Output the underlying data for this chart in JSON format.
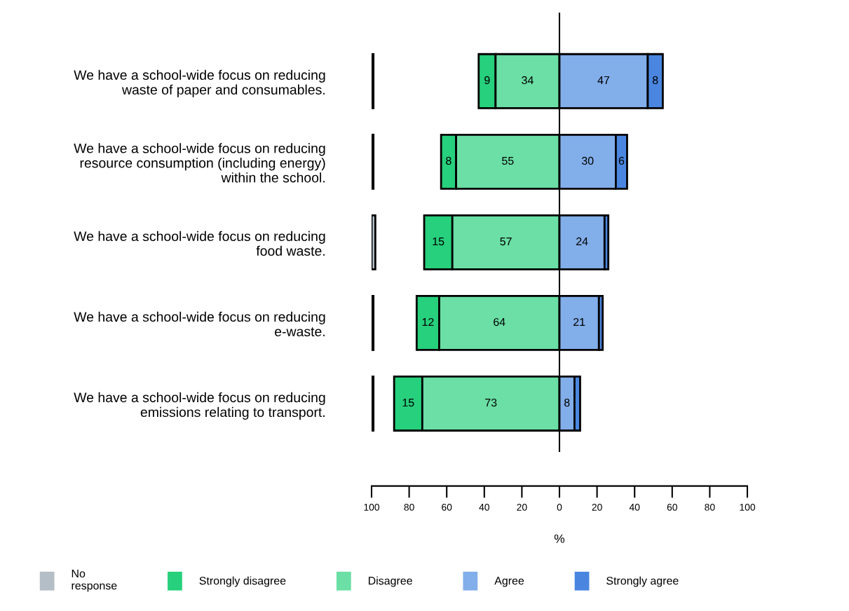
{
  "chart_data": {
    "type": "bar",
    "orientation": "horizontal",
    "xlabel": "%",
    "categories": [
      "We have a school-wide focus on reducing\nwaste of paper and consumables.",
      "We have a school-wide focus on reducing\nresource consumption (including energy)\nwithin the school.",
      "We have a school-wide focus on reducing\nfood waste.",
      "We have a school-wide focus on reducing\ne-waste.",
      "We have a school-wide focus on reducing\nemissions relating to transport."
    ],
    "series": [
      {
        "name": "No\nresponse",
        "color": "#b4bec6",
        "values": [
          1,
          1,
          2,
          1,
          1
        ],
        "base": [
          -100,
          -100,
          -100,
          -100,
          -100
        ],
        "value_labels": [
          null,
          null,
          null,
          null,
          null
        ]
      },
      {
        "name": "Strongly disagree",
        "color": "#26d07c",
        "values": [
          9,
          8,
          15,
          12,
          15
        ],
        "base": [
          -43,
          -63,
          -72,
          -76,
          -88
        ],
        "value_labels": [
          "9",
          "8",
          "15",
          "12",
          "15"
        ]
      },
      {
        "name": "Disagree",
        "color": "#6bdfa5",
        "values": [
          34,
          55,
          57,
          64,
          73
        ],
        "base": [
          -34,
          -55,
          -57,
          -64,
          -73
        ],
        "value_labels": [
          "34",
          "55",
          "57",
          "64",
          "73"
        ]
      },
      {
        "name": "Agree",
        "color": "#82aeea",
        "values": [
          47,
          30,
          24,
          21,
          8
        ],
        "base": [
          0,
          0,
          0,
          0,
          0
        ],
        "value_labels": [
          "47",
          "30",
          "24",
          "21",
          "8"
        ]
      },
      {
        "name": "Strongly agree",
        "color": "#4a86e0",
        "values": [
          8,
          6,
          2,
          2,
          3
        ],
        "base": [
          47,
          30,
          24,
          21,
          8
        ],
        "value_labels": [
          "8",
          "6",
          null,
          null,
          null
        ]
      }
    ],
    "xlim": [
      -100,
      100
    ],
    "xticks": [
      {
        "value": -100,
        "label": "100"
      },
      {
        "value": -80,
        "label": "80"
      },
      {
        "value": -60,
        "label": "60"
      },
      {
        "value": -40,
        "label": "40"
      },
      {
        "value": -20,
        "label": "20"
      },
      0,
      20,
      40,
      60,
      80,
      100
    ],
    "ref_lines": [
      {
        "axis": "x",
        "value": 0,
        "color": "#000000"
      }
    ],
    "grid": false,
    "legend": "bottom"
  }
}
